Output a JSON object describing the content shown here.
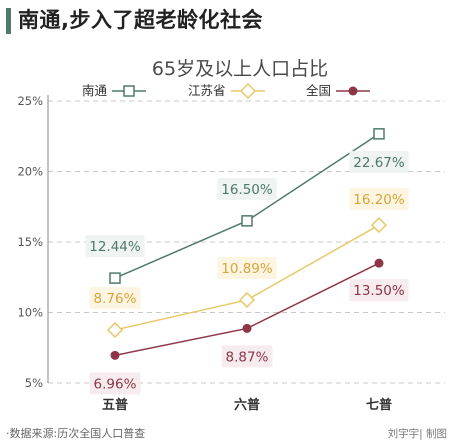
{
  "page": {
    "title": "南通,步入了超老龄化社会",
    "source": "·数据来源:历次全国人口普查",
    "credit": "刘宇宇| 制图"
  },
  "chart_data": {
    "type": "line",
    "title": "65岁及以上人口占比",
    "categories": [
      "五普",
      "六普",
      "七普"
    ],
    "ylim": [
      5,
      25
    ],
    "yticks": [
      "5%",
      "10%",
      "15%",
      "20%",
      "25%"
    ],
    "grid": true,
    "legend_position": "top",
    "series": [
      {
        "name": "南通",
        "marker": "square",
        "color": "#4e7a6e",
        "values": [
          12.44,
          16.5,
          22.67
        ],
        "labels": [
          "12.44%",
          "16.50%",
          "22.67%"
        ]
      },
      {
        "name": "江苏省",
        "marker": "diamond",
        "color": "#e8c96a",
        "label_color": "#d9a53a",
        "values": [
          8.76,
          10.89,
          16.2
        ],
        "labels": [
          "8.76%",
          "10.89%",
          "16.20%"
        ]
      },
      {
        "name": "全国",
        "marker": "circle",
        "color": "#8e3648",
        "values": [
          6.96,
          8.87,
          13.5
        ],
        "labels": [
          "6.96%",
          "8.87%",
          "13.50%"
        ]
      }
    ]
  }
}
